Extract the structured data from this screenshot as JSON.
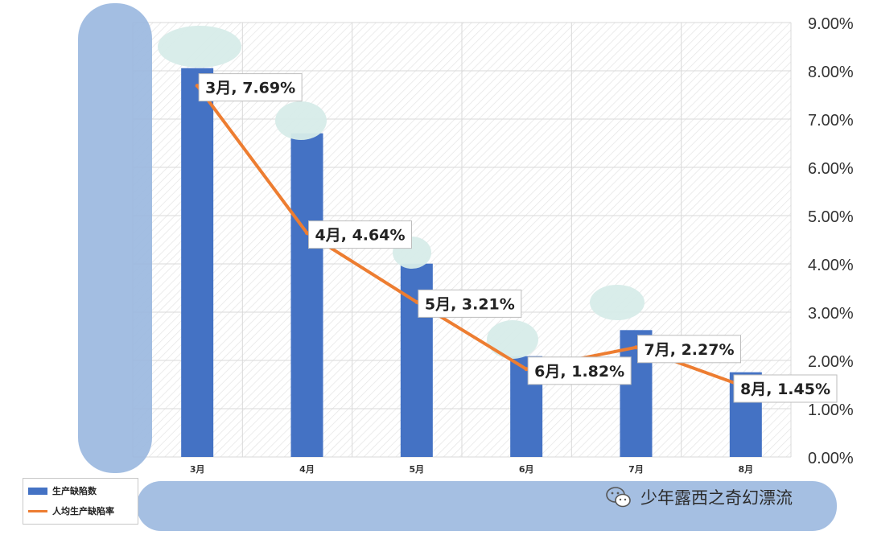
{
  "chart_data": {
    "type": "bar+line",
    "categories": [
      "3月",
      "4月",
      "5月",
      "6月",
      "7月",
      "8月"
    ],
    "series": [
      {
        "name": "生产缺陷数",
        "type": "bar",
        "relative_values": [
          0.895,
          0.745,
          0.445,
          0.232,
          0.292,
          0.195
        ]
      },
      {
        "name": "人均生产缺陷率",
        "type": "line",
        "values": [
          7.69,
          4.64,
          3.21,
          1.82,
          2.27,
          1.45
        ],
        "data_labels": [
          "3月, 7.69%",
          "4月, 4.64%",
          "5月, 3.21%",
          "6月, 1.82%",
          "7月, 2.27%",
          "8月, 1.45%"
        ]
      }
    ],
    "y2_ticks": [
      "0.00%",
      "1.00%",
      "2.00%",
      "3.00%",
      "4.00%",
      "5.00%",
      "6.00%",
      "7.00%",
      "8.00%",
      "9.00%"
    ],
    "y2lim": [
      0,
      9
    ],
    "legend_position": "bottom-left",
    "grid": true
  },
  "colors": {
    "bar": "#4472c4",
    "line": "#ed7d31",
    "grid": "#d9d9d9",
    "redaction": "#9bb8df"
  },
  "legend": {
    "bar_label": "生产缺陷数",
    "line_label": "人均生产缺陷率"
  },
  "watermark": {
    "icon": "wechat-icon",
    "text": "少年露西之奇幻漂流"
  }
}
